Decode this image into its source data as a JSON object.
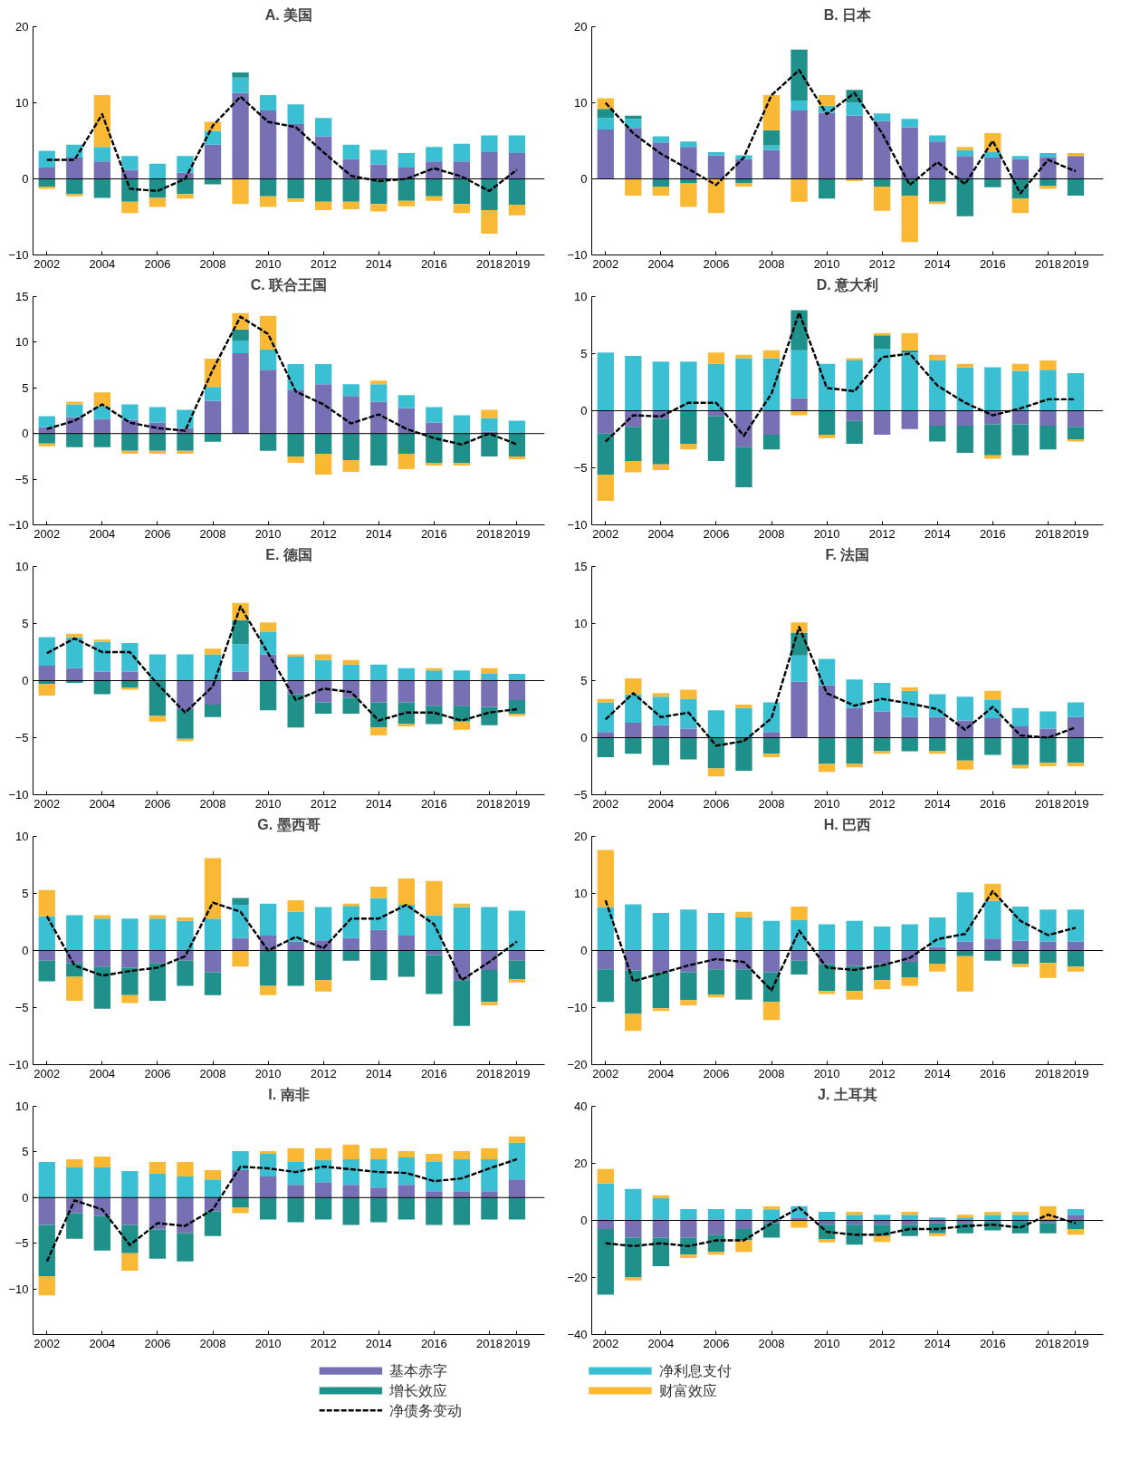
{
  "chart_data": [
    {
      "type": "bar",
      "stacked": true,
      "title": "A. 美国",
      "legend": "bottom",
      "x": [
        2002,
        2003,
        2004,
        2005,
        2006,
        2007,
        2008,
        2009,
        2010,
        2011,
        2012,
        2013,
        2014,
        2015,
        2016,
        2017,
        2018,
        2019
      ],
      "xlim": [
        2001.5,
        2020
      ],
      "xticks": [
        2002,
        2004,
        2006,
        2008,
        2010,
        2012,
        2014,
        2016,
        2018,
        2019
      ],
      "ylim": [
        -10,
        20
      ],
      "yticks": [
        -10,
        0,
        10,
        20
      ],
      "ref_lines": [
        {
          "axis": "y",
          "value": 0,
          "color": "#000000"
        }
      ],
      "series": [
        {
          "name": "基本赤字",
          "color": "#7770b5",
          "values": [
            1.5,
            2.8,
            2.3,
            1.2,
            null,
            0.8,
            4.5,
            11.3,
            9,
            7.2,
            5.6,
            2.6,
            1.9,
            1.5,
            2.3,
            2.3,
            3.5,
            3.4
          ]
        },
        {
          "name": "净利息支付",
          "color": "#3bc0d3",
          "values": [
            2.2,
            1.7,
            1.9,
            1.8,
            2.0,
            2.2,
            1.8,
            2.0,
            2,
            2.6,
            2.4,
            1.9,
            1.9,
            1.9,
            1.9,
            2.3,
            2.2,
            2.3
          ]
        },
        {
          "name": "增长效应",
          "color": "#1f918a",
          "values": [
            -1,
            -2,
            -2.5,
            -3,
            -2.5,
            -2,
            -0.7,
            0.7,
            -2.3,
            -2.6,
            -3,
            -3,
            -3.3,
            -2.9,
            -2.3,
            -3.3,
            -4.1,
            -3.4
          ]
        },
        {
          "name": "财富效应",
          "color": "#f9b934",
          "values": [
            -0.3,
            -0.3,
            6.8,
            -1.5,
            -1.2,
            -0.6,
            1.2,
            -3.3,
            -1.4,
            -0.4,
            -1.1,
            -1,
            -1,
            -0.7,
            -0.6,
            -1.2,
            -3.1,
            -1.4
          ]
        },
        {
          "name": "净债务变动",
          "type": "line",
          "line_style": "dashed",
          "color": "#000000",
          "values": [
            2.5,
            2.5,
            8.5,
            -1.3,
            -1.6,
            0,
            7,
            10.8,
            7.5,
            6.8,
            3.5,
            0.4,
            -0.3,
            0,
            1.4,
            0.3,
            -1.6,
            1.2
          ]
        }
      ]
    },
    {
      "type": "bar",
      "stacked": true,
      "title": "B. 日本",
      "x": [
        2002,
        2003,
        2004,
        2005,
        2006,
        2007,
        2008,
        2009,
        2010,
        2011,
        2012,
        2013,
        2014,
        2015,
        2016,
        2017,
        2018,
        2019
      ],
      "xlim": [
        2001.5,
        2020
      ],
      "xticks": [
        2002,
        2004,
        2006,
        2008,
        2010,
        2012,
        2014,
        2016,
        2018,
        2019
      ],
      "ylim": [
        -10,
        20
      ],
      "yticks": [
        -10,
        0,
        10,
        20
      ],
      "ref_lines": [
        {
          "axis": "y",
          "value": 0,
          "color": "#000000"
        }
      ],
      "series": [
        {
          "color": "#7770b5",
          "values": [
            6.5,
            6.7,
            4.8,
            4.2,
            3.1,
            2.6,
            3.8,
            9,
            8.7,
            8.3,
            7.6,
            6.8,
            4.9,
            3,
            2.8,
            2.6,
            2.9,
            3
          ]
        },
        {
          "color": "#3bc0d3",
          "values": [
            1.5,
            1.2,
            0.8,
            0.7,
            0.4,
            0.5,
            0.6,
            1.3,
            0.9,
            1.7,
            1,
            1.1,
            0.8,
            0.8,
            0.7,
            0.4,
            0.5,
            null
          ]
        },
        {
          "color": "#1f918a",
          "values": [
            1.2,
            0.4,
            -1,
            -0.6,
            null,
            -0.6,
            2.0,
            6.7,
            -2.6,
            1.7,
            -1,
            -2.2,
            -3,
            -4.9,
            -1.1,
            -2.6,
            -0.9,
            -2.2
          ]
        },
        {
          "color": "#f9b934",
          "values": [
            1.4,
            -2.2,
            -1.2,
            -3.1,
            -4.5,
            -0.4,
            4.6,
            -3,
            1.4,
            -0.3,
            -3.2,
            -6.1,
            -0.3,
            0.4,
            2.5,
            -1.9,
            -0.4,
            0.4
          ]
        },
        {
          "type": "line",
          "line_style": "dashed",
          "color": "#000000",
          "values": [
            10,
            6,
            3.3,
            1.3,
            -0.8,
            2.8,
            11,
            14.3,
            8.5,
            11.3,
            6,
            -0.8,
            2.2,
            -0.7,
            5,
            -1.9,
            2.5,
            1
          ]
        }
      ]
    },
    {
      "type": "bar",
      "stacked": true,
      "title": "C. 联合王国",
      "x": [
        2002,
        2003,
        2004,
        2005,
        2006,
        2007,
        2008,
        2009,
        2010,
        2011,
        2012,
        2013,
        2014,
        2015,
        2016,
        2017,
        2018,
        2019
      ],
      "xlim": [
        2001.5,
        2020
      ],
      "xticks": [
        2002,
        2004,
        2006,
        2008,
        2010,
        2012,
        2014,
        2016,
        2018,
        2019
      ],
      "ylim": [
        -10,
        15
      ],
      "yticks": [
        -10,
        -5,
        0,
        5,
        10,
        15
      ],
      "ref_lines": [
        {
          "axis": "y",
          "value": 0,
          "color": "#000000"
        }
      ],
      "series": [
        {
          "color": "#7770b5",
          "values": [
            0.7,
            1.8,
            1.6,
            1.5,
            1.2,
            0.6,
            3.6,
            8.8,
            7,
            4.8,
            5.4,
            4.1,
            3.5,
            2.8,
            1.2,
            null,
            0.2,
            null
          ]
        },
        {
          "color": "#3bc0d3",
          "values": [
            1.2,
            1.4,
            1.4,
            1.7,
            1.7,
            2.0,
            1.5,
            1.4,
            2.2,
            2.8,
            2.2,
            1.3,
            1.9,
            1.4,
            1.7,
            2,
            1.5,
            1.4
          ]
        },
        {
          "color": "#1f918a",
          "values": [
            -1.1,
            -1.5,
            -1.5,
            -1.9,
            -1.9,
            -1.9,
            -0.9,
            1.2,
            -1.9,
            -2.5,
            -2.2,
            -2.9,
            -3.5,
            -2.2,
            -3.2,
            -3.2,
            -2.5,
            -2.5
          ]
        },
        {
          "color": "#f9b934",
          "values": [
            -0.3,
            0.3,
            1.5,
            -0.3,
            -0.3,
            -0.3,
            3.1,
            1.8,
            3.7,
            -0.7,
            -2.3,
            -1.3,
            0.4,
            -1.7,
            -0.3,
            -0.3,
            0.9,
            -0.3
          ]
        },
        {
          "type": "line",
          "line_style": "dashed",
          "color": "#000000",
          "values": [
            0.5,
            1.4,
            3.2,
            1.2,
            0.6,
            0.3,
            7,
            12.8,
            10.9,
            4.6,
            3.2,
            1.1,
            2.1,
            0.5,
            -0.5,
            -1.2,
            0,
            -1.2
          ]
        }
      ]
    },
    {
      "type": "bar",
      "stacked": true,
      "title": "D. 意大利",
      "x": [
        2002,
        2003,
        2004,
        2005,
        2006,
        2007,
        2008,
        2009,
        2010,
        2011,
        2012,
        2013,
        2014,
        2015,
        2016,
        2017,
        2018,
        2019
      ],
      "xlim": [
        2001.5,
        2020
      ],
      "xticks": [
        2002,
        2004,
        2006,
        2008,
        2010,
        2012,
        2014,
        2016,
        2018,
        2019
      ],
      "ylim": [
        -10,
        10
      ],
      "yticks": [
        -10,
        -5,
        0,
        5,
        10
      ],
      "ref_lines": [
        {
          "axis": "y",
          "value": 0,
          "color": "#000000"
        }
      ],
      "series": [
        {
          "color": "#7770b5",
          "values": [
            -2,
            -1.4,
            -0.7,
            null,
            -0.5,
            -3.2,
            -2.1,
            1.1,
            null,
            -0.9,
            -2.1,
            -1.6,
            -1.3,
            -1.3,
            -1.2,
            -1.2,
            -1.3,
            -1.4
          ]
        },
        {
          "color": "#3bc0d3",
          "values": [
            5.1,
            4.8,
            4.3,
            4.3,
            4.1,
            4.6,
            4.6,
            4.2,
            4.1,
            4.4,
            5.4,
            5.1,
            4.4,
            3.8,
            3.8,
            3.5,
            3.6,
            3.3
          ]
        },
        {
          "color": "#1f918a",
          "values": [
            -3.6,
            -3,
            -4,
            -2.9,
            -3.9,
            -3.5,
            -1.3,
            3.5,
            -2.1,
            -2,
            1.2,
            0.2,
            -1.4,
            -2.4,
            -2.7,
            -2.7,
            -2.1,
            -1.1
          ]
        },
        {
          "color": "#f9b934",
          "values": [
            -2.3,
            -1,
            -0.5,
            -0.5,
            1,
            0.3,
            0.7,
            -0.4,
            -0.3,
            0.2,
            0.2,
            1.5,
            0.5,
            0.3,
            -0.3,
            0.6,
            0.8,
            -0.2
          ]
        },
        {
          "type": "line",
          "line_style": "dashed",
          "color": "#000000",
          "values": [
            -2.7,
            -0.4,
            -0.5,
            0.7,
            0.7,
            -2.2,
            1.5,
            8.6,
            2,
            1.7,
            4.7,
            5,
            2.2,
            0.7,
            -0.4,
            0.2,
            1,
            1
          ]
        }
      ]
    },
    {
      "type": "bar",
      "stacked": true,
      "title": "E. 德国",
      "x": [
        2002,
        2003,
        2004,
        2005,
        2006,
        2007,
        2008,
        2009,
        2010,
        2011,
        2012,
        2013,
        2014,
        2015,
        2016,
        2017,
        2018,
        2019
      ],
      "xlim": [
        2001.5,
        2020
      ],
      "xticks": [
        2002,
        2004,
        2006,
        2008,
        2010,
        2012,
        2014,
        2016,
        2018,
        2019
      ],
      "ylim": [
        -10,
        10
      ],
      "yticks": [
        -10,
        -5,
        0,
        5,
        10
      ],
      "ref_lines": [
        {
          "axis": "y",
          "value": 0,
          "color": "#000000"
        }
      ],
      "series": [
        {
          "color": "#7770b5",
          "values": [
            1.3,
            1.1,
            0.8,
            0.8,
            null,
            -2.5,
            -2.1,
            0.8,
            2.3,
            -1.2,
            -1.9,
            -1.5,
            -1.9,
            -1.9,
            -2.2,
            -2.2,
            -2.3,
            -1.7
          ]
        },
        {
          "color": "#3bc0d3",
          "values": [
            2.5,
            2.7,
            2.6,
            2.5,
            2.3,
            2.3,
            2.3,
            2.4,
            2,
            2.1,
            1.8,
            1.4,
            1.4,
            1.1,
            0.9,
            0.9,
            0.6,
            0.6
          ]
        },
        {
          "color": "#1f918a",
          "values": [
            -0.3,
            -0.2,
            -1.2,
            -0.6,
            -3.1,
            -2.6,
            -1.1,
            2.1,
            -2.6,
            -2.9,
            -1,
            -1.4,
            -2.2,
            -1.9,
            -1.6,
            -1.4,
            -1.6,
            -1.2
          ]
        },
        {
          "color": "#f9b934",
          "values": [
            -1,
            0.3,
            0.2,
            -0.2,
            -0.5,
            -0.2,
            0.5,
            1.5,
            0.8,
            0.2,
            0.5,
            0.4,
            -0.7,
            -0.2,
            0.2,
            -0.7,
            0.5,
            -0.2
          ]
        },
        {
          "type": "line",
          "line_style": "dashed",
          "color": "#000000",
          "values": [
            2.4,
            3.7,
            2.5,
            2.5,
            -0.3,
            -2.8,
            -0.5,
            6.5,
            2.4,
            -1.7,
            -0.7,
            -1,
            -3.5,
            -2.8,
            -2.8,
            -3.5,
            -2.8,
            -2.5
          ]
        }
      ]
    },
    {
      "type": "bar",
      "stacked": true,
      "title": "F. 法国",
      "x": [
        2002,
        2003,
        2004,
        2005,
        2006,
        2007,
        2008,
        2009,
        2010,
        2011,
        2012,
        2013,
        2014,
        2015,
        2016,
        2017,
        2018,
        2019
      ],
      "xlim": [
        2001.5,
        2020
      ],
      "xticks": [
        2002,
        2004,
        2006,
        2008,
        2010,
        2012,
        2014,
        2016,
        2018,
        2019
      ],
      "ylim": [
        -5,
        15
      ],
      "yticks": [
        -5,
        0,
        5,
        10,
        15
      ],
      "ref_lines": [
        {
          "axis": "y",
          "value": 0,
          "color": "#000000"
        }
      ],
      "series": [
        {
          "color": "#7770b5",
          "values": [
            0.5,
            1.3,
            1.1,
            0.8,
            null,
            null,
            0.5,
            4.9,
            4.6,
            2.6,
            2.3,
            1.8,
            1.8,
            1.5,
            1.7,
            1,
            0.8,
            1.8
          ]
        },
        {
          "color": "#3bc0d3",
          "values": [
            2.6,
            2.5,
            2.5,
            2.6,
            2.4,
            2.6,
            2.6,
            2.3,
            2.3,
            2.5,
            2.5,
            2.3,
            2.0,
            2.1,
            1.6,
            1.6,
            1.5,
            1.3
          ]
        },
        {
          "color": "#1f918a",
          "values": [
            -1.7,
            -1.4,
            -2.4,
            -1.9,
            -2.7,
            -2.9,
            -1.4,
            2.0,
            -2.3,
            -2.3,
            -1.2,
            -1.2,
            -1.2,
            -2,
            -1.5,
            -2.4,
            -2.2,
            -2.2
          ]
        },
        {
          "color": "#f9b934",
          "values": [
            0.3,
            1.4,
            0.3,
            0.8,
            -0.7,
            0.3,
            -0.3,
            0.9,
            -0.7,
            -0.3,
            -0.2,
            0.3,
            -0.2,
            -0.8,
            0.8,
            -0.3,
            -0.3,
            -0.3
          ]
        },
        {
          "type": "line",
          "line_style": "dashed",
          "color": "#000000",
          "values": [
            1.6,
            3.9,
            1.8,
            2.2,
            -0.7,
            -0.3,
            1.7,
            9.7,
            3.9,
            2.8,
            3.4,
            3,
            2.5,
            0.7,
            2.7,
            0.2,
            0,
            0.9
          ]
        }
      ]
    },
    {
      "type": "bar",
      "stacked": true,
      "title": "G. 墨西哥",
      "x": [
        2002,
        2003,
        2004,
        2005,
        2006,
        2007,
        2008,
        2009,
        2010,
        2011,
        2012,
        2013,
        2014,
        2015,
        2016,
        2017,
        2018,
        2019
      ],
      "xlim": [
        2001.5,
        2020
      ],
      "xticks": [
        2002,
        2004,
        2006,
        2008,
        2010,
        2012,
        2014,
        2016,
        2018,
        2019
      ],
      "ylim": [
        -10,
        10
      ],
      "yticks": [
        -10,
        -5,
        0,
        5,
        10
      ],
      "ref_lines": [
        {
          "axis": "y",
          "value": 0,
          "color": "#000000"
        }
      ],
      "series": [
        {
          "color": "#7770b5",
          "values": [
            -0.9,
            -1.1,
            -1.4,
            -1.5,
            -1.1,
            -0.9,
            -1.9,
            1.1,
            1.3,
            0.8,
            0.9,
            1.1,
            1.8,
            1.3,
            -0.4,
            -2.6,
            -1.7,
            -0.9
          ]
        },
        {
          "color": "#3bc0d3",
          "values": [
            3,
            3.1,
            2.8,
            2.8,
            2.8,
            2.6,
            2.8,
            2.9,
            2.8,
            2.6,
            2.9,
            2.8,
            2.8,
            2.7,
            3.1,
            3.8,
            3.8,
            3.5
          ]
        },
        {
          "color": "#1f918a",
          "values": [
            -1.8,
            -1.2,
            -3.7,
            -2.4,
            -3.3,
            -2.2,
            -2,
            0.6,
            -3.1,
            -3.1,
            -2.6,
            -0.9,
            -2.6,
            -2.3,
            -3.4,
            -4,
            -2.8,
            -1.6
          ]
        },
        {
          "color": "#f9b934",
          "values": [
            2.3,
            -2.1,
            0.3,
            -0.7,
            0.3,
            0.3,
            5.3,
            -1.4,
            -0.8,
            1,
            -1,
            0.2,
            1,
            2.3,
            3,
            0.3,
            -0.3,
            -0.3
          ]
        },
        {
          "type": "line",
          "line_style": "dashed",
          "color": "#000000",
          "values": [
            3,
            -1.3,
            -2.2,
            -1.8,
            -1.5,
            -0.5,
            4.2,
            3.4,
            0,
            1.2,
            0.2,
            2.8,
            2.8,
            4,
            2.3,
            -2.6,
            -1,
            0.8
          ]
        }
      ]
    },
    {
      "type": "bar",
      "stacked": true,
      "title": "H. 巴西",
      "x": [
        2002,
        2003,
        2004,
        2005,
        2006,
        2007,
        2008,
        2009,
        2010,
        2011,
        2012,
        2013,
        2014,
        2015,
        2016,
        2017,
        2018,
        2019
      ],
      "xlim": [
        2001.5,
        2020
      ],
      "xticks": [
        2002,
        2004,
        2006,
        2008,
        2010,
        2012,
        2014,
        2016,
        2018,
        2019
      ],
      "ylim": [
        -20,
        20
      ],
      "yticks": [
        -20,
        -10,
        0,
        10,
        20
      ],
      "ref_lines": [
        {
          "axis": "y",
          "value": 0,
          "color": "#000000"
        }
      ],
      "series": [
        {
          "color": "#7770b5",
          "values": [
            -3.3,
            -3.5,
            -3.8,
            -3.8,
            -3.3,
            -3.3,
            -3.8,
            -1.8,
            -2.4,
            -2.7,
            -2.4,
            -2,
            0.6,
            1.6,
            2.1,
            1.7,
            1.6,
            1.6
          ]
        },
        {
          "color": "#3bc0d3",
          "values": [
            7.6,
            8.1,
            6.6,
            7.2,
            6.6,
            5.8,
            5.2,
            5.3,
            4.6,
            5.2,
            4.2,
            4.6,
            5.2,
            8.6,
            6.6,
            6,
            5.6,
            5.6
          ]
        },
        {
          "color": "#1f918a",
          "values": [
            -5.7,
            -7.6,
            -6.3,
            -4.9,
            -4.4,
            -5.3,
            -5.2,
            -2.4,
            -4.7,
            -4.4,
            -2.8,
            -2.7,
            -2.3,
            -1,
            -1.8,
            -2.4,
            -2.2,
            -2.8
          ]
        },
        {
          "color": "#f9b934",
          "values": [
            10,
            -3,
            -0.5,
            -0.9,
            -0.5,
            1,
            -3.2,
            2.4,
            -0.5,
            -1.5,
            -1.6,
            -1.5,
            -1.4,
            -6.2,
            3,
            -0.5,
            -2.6,
            -0.9
          ]
        },
        {
          "type": "line",
          "line_style": "dashed",
          "color": "#000000",
          "values": [
            8.8,
            -5.4,
            -4,
            -2.6,
            -1.5,
            -2,
            -7,
            3.5,
            -3,
            -3.4,
            -2.6,
            -1.3,
            2,
            2.9,
            10.4,
            5.2,
            2.7,
            4
          ]
        }
      ]
    },
    {
      "type": "bar",
      "stacked": true,
      "title": "I. 南非",
      "x": [
        2002,
        2003,
        2004,
        2005,
        2006,
        2007,
        2008,
        2009,
        2010,
        2011,
        2012,
        2013,
        2014,
        2015,
        2016,
        2017,
        2018,
        2019
      ],
      "xlim": [
        2001.5,
        2020
      ],
      "xticks": [
        2002,
        2004,
        2006,
        2008,
        2010,
        2012,
        2014,
        2016,
        2018,
        2019
      ],
      "ylim": [
        -15,
        10
      ],
      "yticks": [
        -10,
        -5,
        0,
        5,
        10
      ],
      "ref_lines": [
        {
          "axis": "y",
          "value": 0,
          "color": "#000000"
        }
      ],
      "series": [
        {
          "color": "#7770b5",
          "values": [
            -3,
            -1.7,
            -2,
            -3,
            -3.5,
            -3.9,
            -1.5,
            3,
            2.3,
            1.4,
            1.7,
            1.4,
            1.1,
            1.4,
            0.7,
            0.7,
            0.7,
            2
          ]
        },
        {
          "color": "#3bc0d3",
          "values": [
            3.9,
            3.3,
            3.3,
            2.9,
            2.6,
            2.3,
            2,
            2.1,
            2.5,
            2.5,
            2.4,
            2.8,
            3.1,
            3,
            3.2,
            3.5,
            3.5,
            4
          ]
        },
        {
          "color": "#1f918a",
          "values": [
            -5.6,
            -2.8,
            -3.8,
            -3.1,
            -3.2,
            -3.1,
            -2.7,
            -1.1,
            -2.4,
            -2.7,
            -2.4,
            -3,
            -2.7,
            -2.4,
            -3,
            -3,
            -2.4,
            -2.4
          ]
        },
        {
          "color": "#f9b934",
          "values": [
            -2.1,
            0.9,
            1.2,
            -1.9,
            1.3,
            1.6,
            1,
            -0.6,
            0.3,
            1.5,
            1.3,
            1.6,
            1.2,
            0.7,
            0.9,
            0.9,
            1.2,
            0.7
          ]
        },
        {
          "type": "line",
          "line_style": "dashed",
          "color": "#000000",
          "values": [
            -7,
            -0.3,
            -1.3,
            -5.2,
            -2.8,
            -3.1,
            -1.3,
            3.4,
            3.2,
            2.8,
            3.4,
            3.1,
            2.8,
            2.7,
            1.8,
            2.1,
            3.2,
            4.2
          ]
        }
      ]
    },
    {
      "type": "bar",
      "stacked": true,
      "title": "J. 土耳其",
      "x": [
        2002,
        2003,
        2004,
        2005,
        2006,
        2007,
        2008,
        2009,
        2010,
        2011,
        2012,
        2013,
        2014,
        2015,
        2016,
        2017,
        2018,
        2019
      ],
      "xlim": [
        2001.5,
        2020
      ],
      "xticks": [
        2002,
        2004,
        2006,
        2008,
        2010,
        2012,
        2014,
        2016,
        2018,
        2019
      ],
      "ylim": [
        -40,
        40
      ],
      "yticks": [
        -40,
        -20,
        0,
        20,
        40
      ],
      "ref_lines": [
        {
          "axis": "y",
          "value": 0,
          "color": "#000000"
        }
      ],
      "series": [
        {
          "color": "#7770b5",
          "values": [
            -3,
            -6,
            -6,
            -6,
            -5,
            -3,
            -1,
            1,
            -1.5,
            -1.5,
            -1.5,
            -1.5,
            -1,
            -1,
            -0.5,
            -0.5,
            -1,
            2
          ]
        },
        {
          "color": "#3bc0d3",
          "values": [
            13,
            11,
            7.8,
            4,
            4,
            4,
            3.9,
            4,
            3,
            2,
            2,
            2,
            1,
            1,
            2,
            2,
            0.5,
            2
          ]
        },
        {
          "color": "#1f918a",
          "values": [
            -23,
            -14,
            -10,
            -6,
            -6,
            -4,
            -5,
            null,
            -5,
            -7,
            -4,
            -4,
            -3.5,
            -3.5,
            -3,
            -4,
            -3.5,
            -3
          ]
        },
        {
          "color": "#f9b934",
          "values": [
            5,
            -1,
            1,
            -1.2,
            -1,
            -4,
            1,
            -2.5,
            -1.2,
            1,
            -2,
            1,
            -1,
            1,
            1,
            1,
            4.5,
            -2
          ]
        },
        {
          "type": "line",
          "line_style": "dashed",
          "color": "#000000",
          "values": [
            -8,
            -9,
            -8,
            -9,
            -7,
            -7,
            -1,
            4.5,
            -4,
            -5,
            -5,
            -3,
            -3,
            -2,
            -1.5,
            -2.5,
            2,
            -1
          ]
        }
      ]
    }
  ]
}
